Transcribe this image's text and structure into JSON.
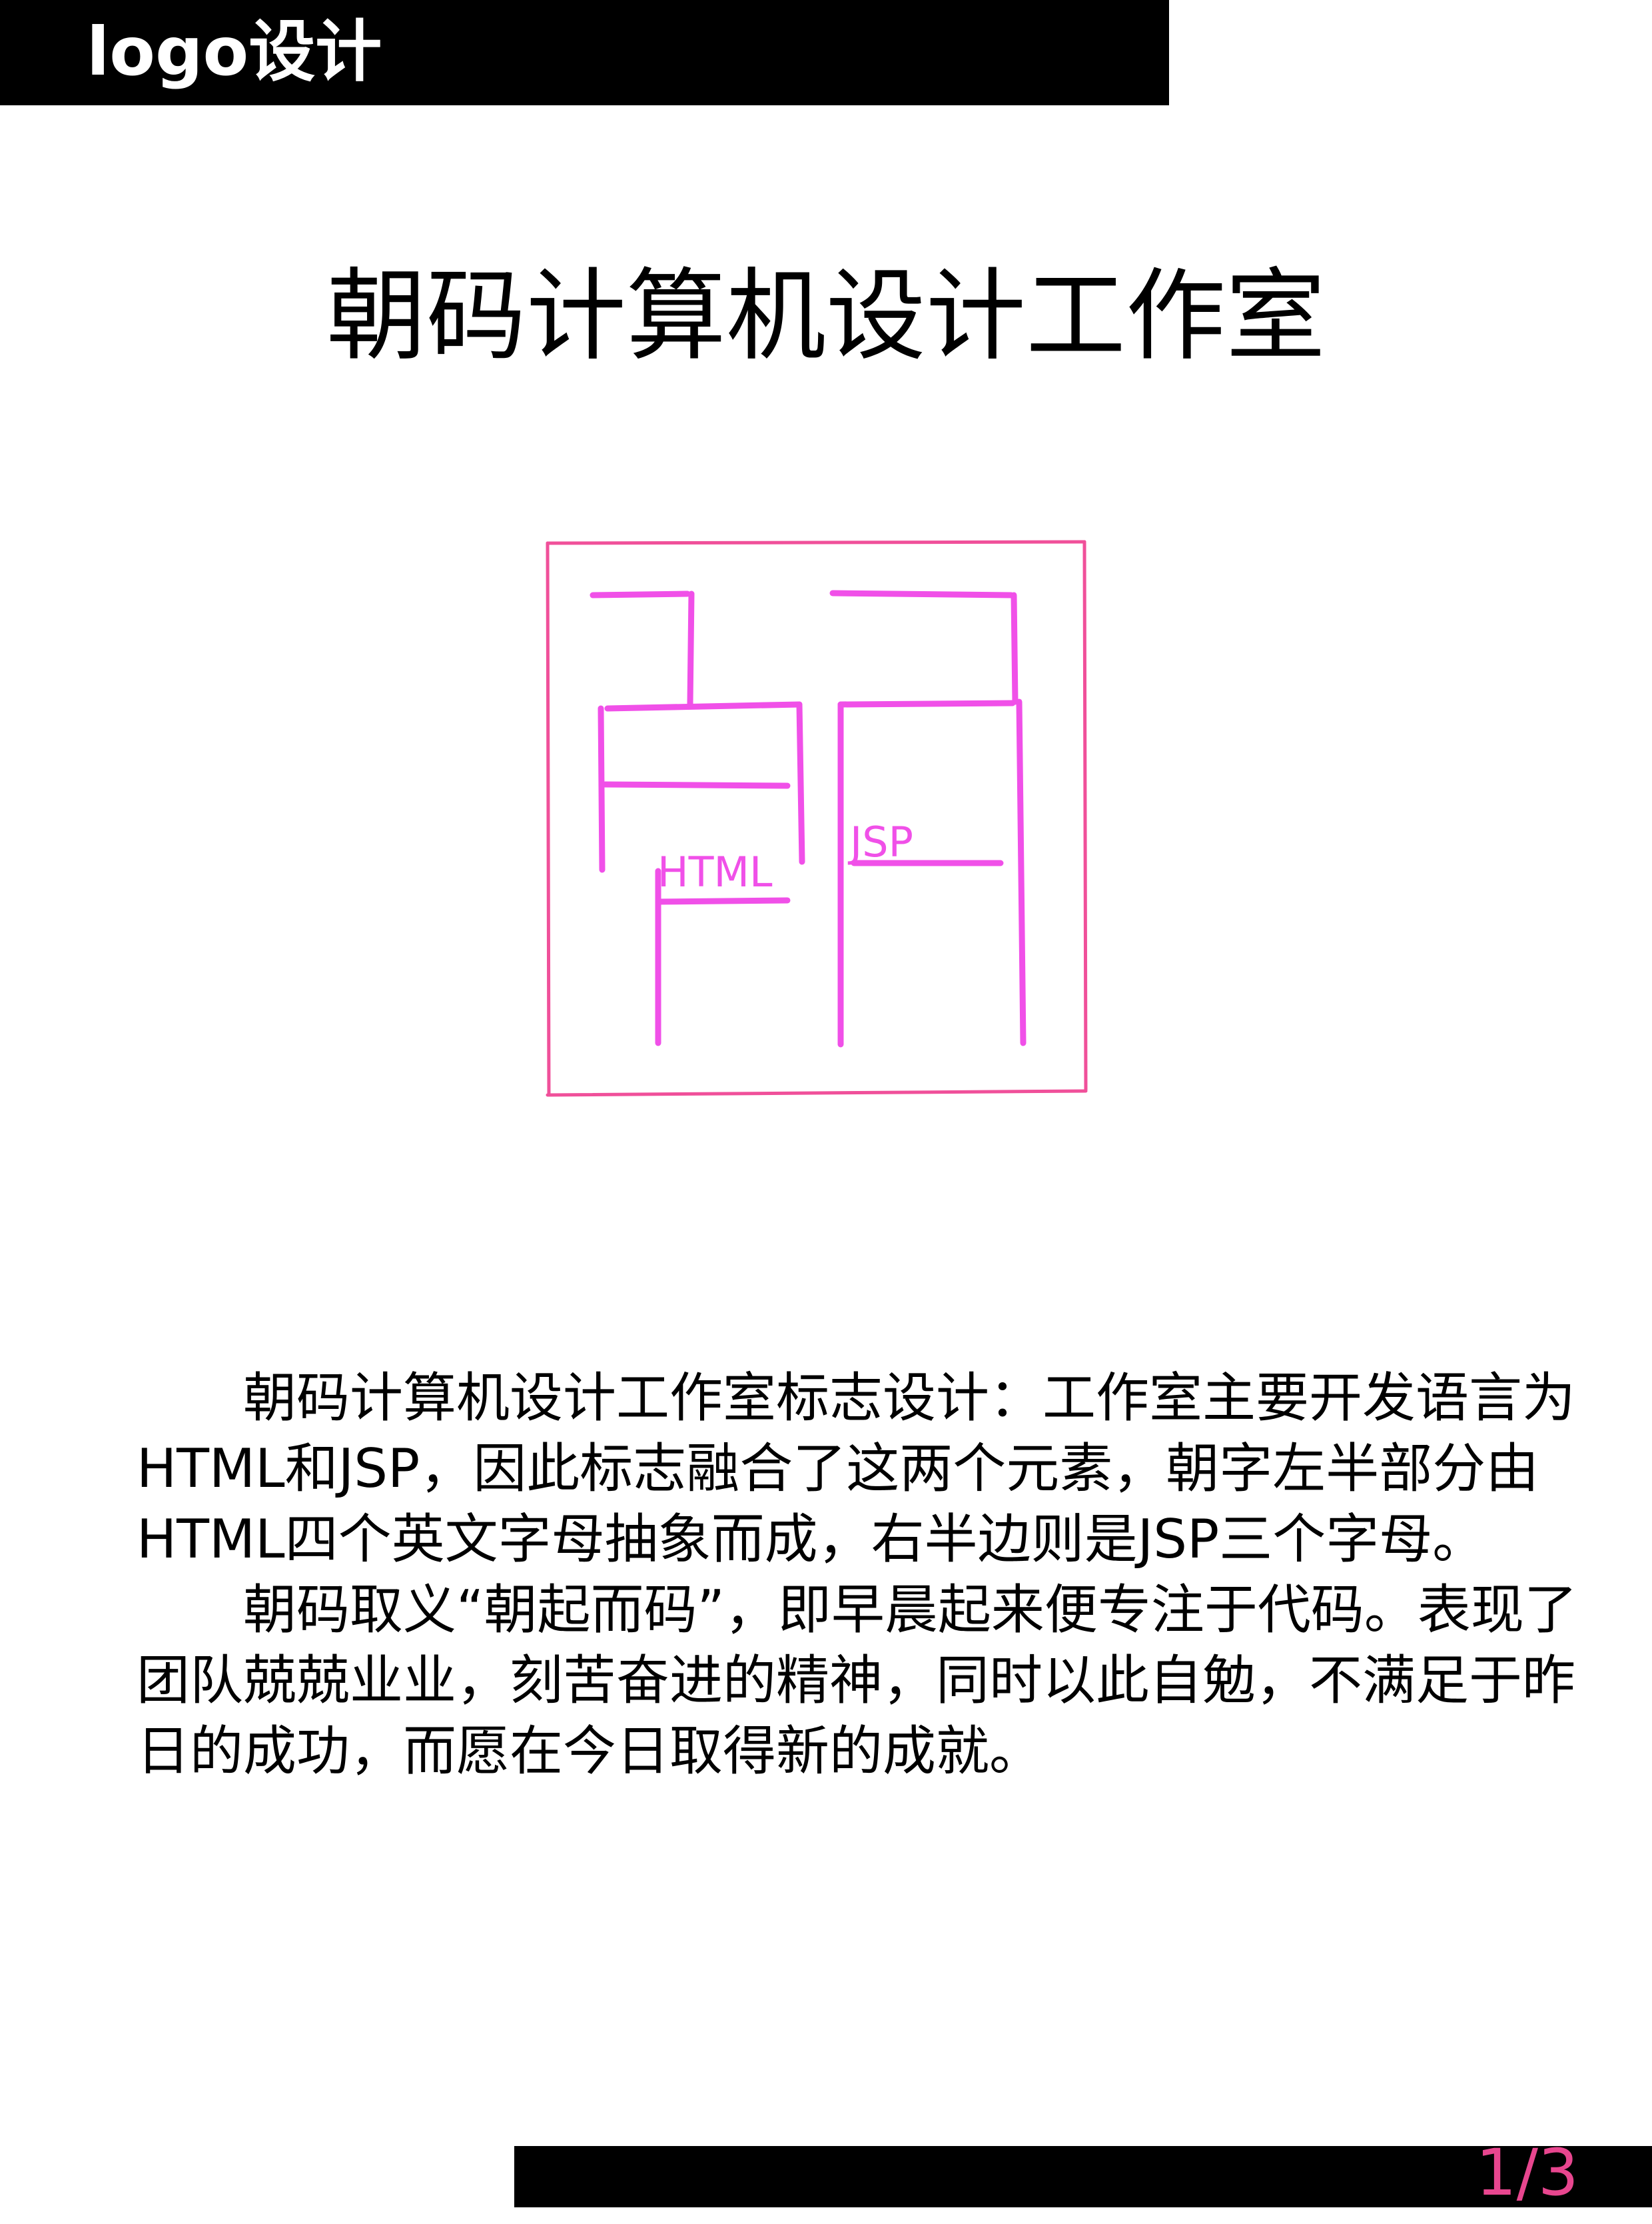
{
  "header": {
    "label": "logo设计"
  },
  "title": "朝码计算机设计工作室",
  "logo": {
    "icon": "zhao-character-logo",
    "html_text": "HTML",
    "jsp_text": "JSP",
    "frame_color": "#f0509a",
    "stroke_color": "#f050e8"
  },
  "description": {
    "paragraphs": [
      "朝码计算机设计工作室标志设计：工作室主要开发语言为HTML和JSP，因此标志融合了这两个元素，朝字左半部分由HTML四个英文字母抽象而成，右半边则是JSP三个字母。",
      "朝码取义“朝起而码”，即早晨起来便专注于代码。表现了团队兢兢业业，刻苦奋进的精神，同时以此自勉，不满足于昨日的成功，而愿在今日取得新的成就。"
    ]
  },
  "footer": {
    "page_number": "1/3",
    "page_number_color": "#e8468f"
  }
}
